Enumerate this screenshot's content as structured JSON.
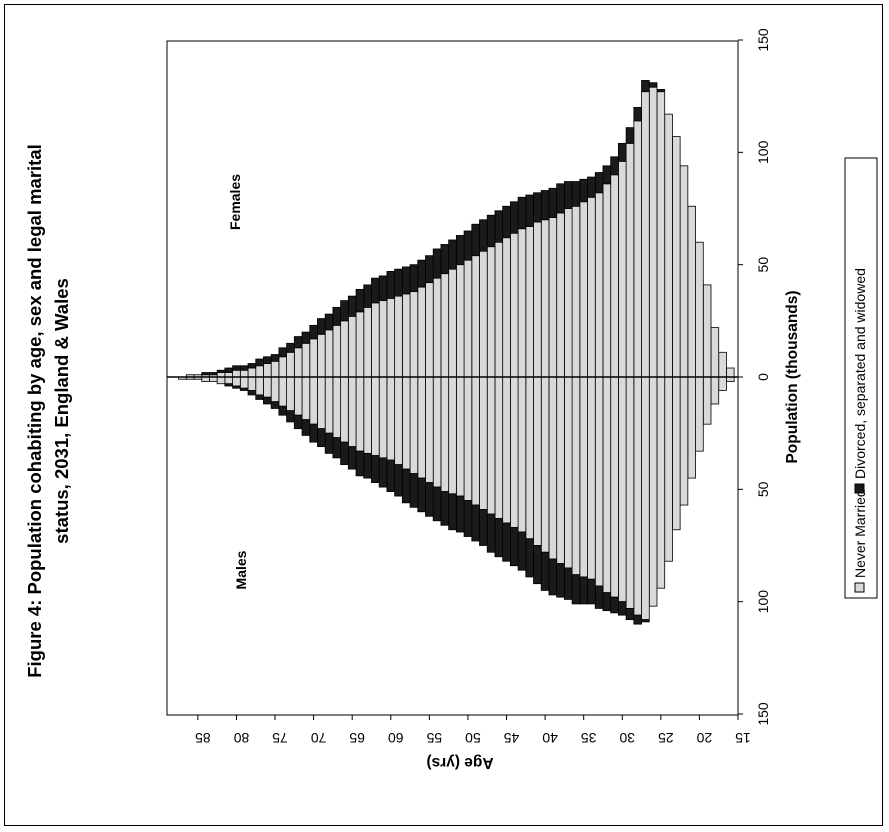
{
  "chart_data": {
    "type": "bar",
    "orientation": "population-pyramid",
    "title": "Figure 4: Population cohabiting by age, sex and legal marital status, 2031, England & Wales",
    "title_lines": [
      "Figure 4: Population cohabiting by age, sex and legal marital",
      "status, 2031, England & Wales"
    ],
    "age_label": "Age (yrs)",
    "population_label": "Population (thousands)",
    "age_ticks": [
      "15",
      "20",
      "25",
      "30",
      "35",
      "40",
      "45",
      "50",
      "55",
      "60",
      "65",
      "70",
      "75",
      "80",
      "85"
    ],
    "population_ticks_males": [
      "150",
      "100",
      "50",
      "0"
    ],
    "population_ticks_females": [
      "50",
      "100",
      "150"
    ],
    "population_range": [
      -150,
      150
    ],
    "age_range": [
      15,
      89
    ],
    "group_labels": {
      "males": "Males",
      "females": "Females"
    },
    "legend": [
      {
        "name": "Never Married",
        "color": "#d9d9d9"
      },
      {
        "name": "Divorced, separated and widowed",
        "color": "#1a1a1a"
      }
    ],
    "ages": [
      16,
      17,
      18,
      19,
      20,
      21,
      22,
      23,
      24,
      25,
      26,
      27,
      28,
      29,
      30,
      31,
      32,
      33,
      34,
      35,
      36,
      37,
      38,
      39,
      40,
      41,
      42,
      43,
      44,
      45,
      46,
      47,
      48,
      49,
      50,
      51,
      52,
      53,
      54,
      55,
      56,
      57,
      58,
      59,
      60,
      61,
      62,
      63,
      64,
      65,
      66,
      67,
      68,
      69,
      70,
      71,
      72,
      73,
      74,
      75,
      76,
      77,
      78,
      79,
      80,
      81,
      82,
      83,
      84,
      85,
      86,
      87,
      88,
      89
    ],
    "series": [
      {
        "name": "Never Married",
        "group": "Males",
        "values": [
          2,
          6,
          12,
          21,
          33,
          45,
          57,
          68,
          82,
          94,
          102,
          108,
          106,
          103,
          100,
          98,
          96,
          93,
          90,
          89,
          88,
          85,
          83,
          81,
          78,
          75,
          72,
          69,
          67,
          65,
          63,
          61,
          59,
          57,
          55,
          53,
          52,
          51,
          49,
          47,
          45,
          43,
          41,
          39,
          37,
          36,
          35,
          34,
          33,
          31,
          29,
          27,
          25,
          23,
          21,
          19,
          17,
          15,
          13,
          11,
          9,
          8,
          6,
          5,
          4,
          3,
          3,
          2,
          2,
          1,
          1,
          1,
          0,
          0
        ]
      },
      {
        "name": "Divorced, separated and widowed",
        "group": "Males",
        "values": [
          0,
          0,
          0,
          0,
          0,
          0,
          0,
          0,
          0,
          0,
          0,
          1,
          4,
          5,
          6,
          7,
          8,
          10,
          11,
          12,
          13,
          14,
          15,
          16,
          17,
          17,
          17,
          17,
          17,
          17,
          17,
          17,
          16,
          16,
          16,
          16,
          16,
          15,
          15,
          15,
          15,
          15,
          15,
          14,
          14,
          13,
          12,
          11,
          11,
          10,
          10,
          9,
          9,
          8,
          8,
          7,
          6,
          5,
          4,
          3,
          3,
          2,
          2,
          1,
          1,
          1,
          0,
          0,
          0,
          0,
          0,
          0,
          0,
          0
        ]
      },
      {
        "name": "Never Married",
        "group": "Females",
        "values": [
          4,
          11,
          22,
          41,
          60,
          76,
          94,
          107,
          117,
          127,
          129,
          127,
          114,
          104,
          96,
          90,
          86,
          82,
          80,
          78,
          76,
          75,
          73,
          71,
          70,
          69,
          67,
          66,
          64,
          62,
          60,
          58,
          56,
          54,
          52,
          50,
          48,
          46,
          44,
          42,
          40,
          38,
          37,
          36,
          35,
          34,
          33,
          31,
          29,
          27,
          25,
          23,
          21,
          19,
          17,
          15,
          13,
          11,
          9,
          7,
          6,
          5,
          4,
          3,
          3,
          2,
          2,
          1,
          1,
          1,
          1,
          0,
          0,
          0
        ]
      },
      {
        "name": "Divorced, separated and widowed",
        "group": "Females",
        "values": [
          0,
          0,
          0,
          0,
          0,
          0,
          0,
          0,
          0,
          1,
          2,
          5,
          6,
          7,
          8,
          8,
          8,
          9,
          9,
          10,
          11,
          12,
          13,
          13,
          13,
          13,
          14,
          14,
          14,
          14,
          14,
          14,
          14,
          14,
          13,
          13,
          13,
          13,
          13,
          12,
          12,
          12,
          12,
          12,
          12,
          11,
          11,
          10,
          10,
          9,
          9,
          8,
          7,
          7,
          6,
          5,
          5,
          4,
          4,
          3,
          3,
          3,
          2,
          2,
          2,
          2,
          1,
          1,
          1,
          0,
          0,
          0,
          0,
          0
        ]
      }
    ]
  }
}
